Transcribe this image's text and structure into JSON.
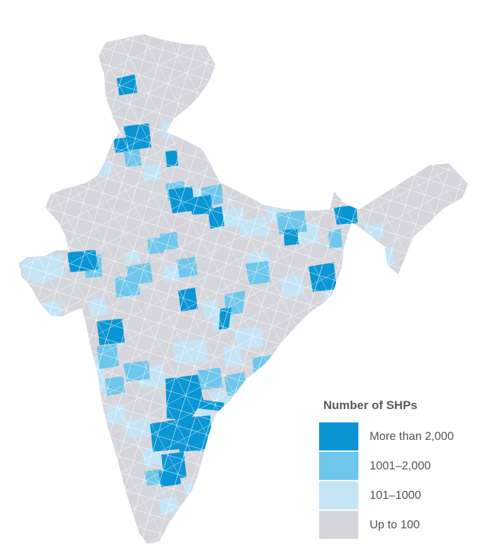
{
  "map": {
    "subject": "India districts by number of SHPs",
    "colors": {
      "high": "#0a96d4",
      "mid": "#6ec6ea",
      "low": "#c4e4f6",
      "base": "#d5d6dc",
      "border": "#ffffff"
    }
  },
  "legend": {
    "title": "Number of SHPs",
    "items": [
      {
        "label": "More than 2,000",
        "color": "#0a96d4"
      },
      {
        "label": "1001–2,000",
        "color": "#6ec6ea"
      },
      {
        "label": "101–1000",
        "color": "#c4e4f6"
      },
      {
        "label": "Up to 100",
        "color": "#d5d6dc"
      }
    ]
  }
}
